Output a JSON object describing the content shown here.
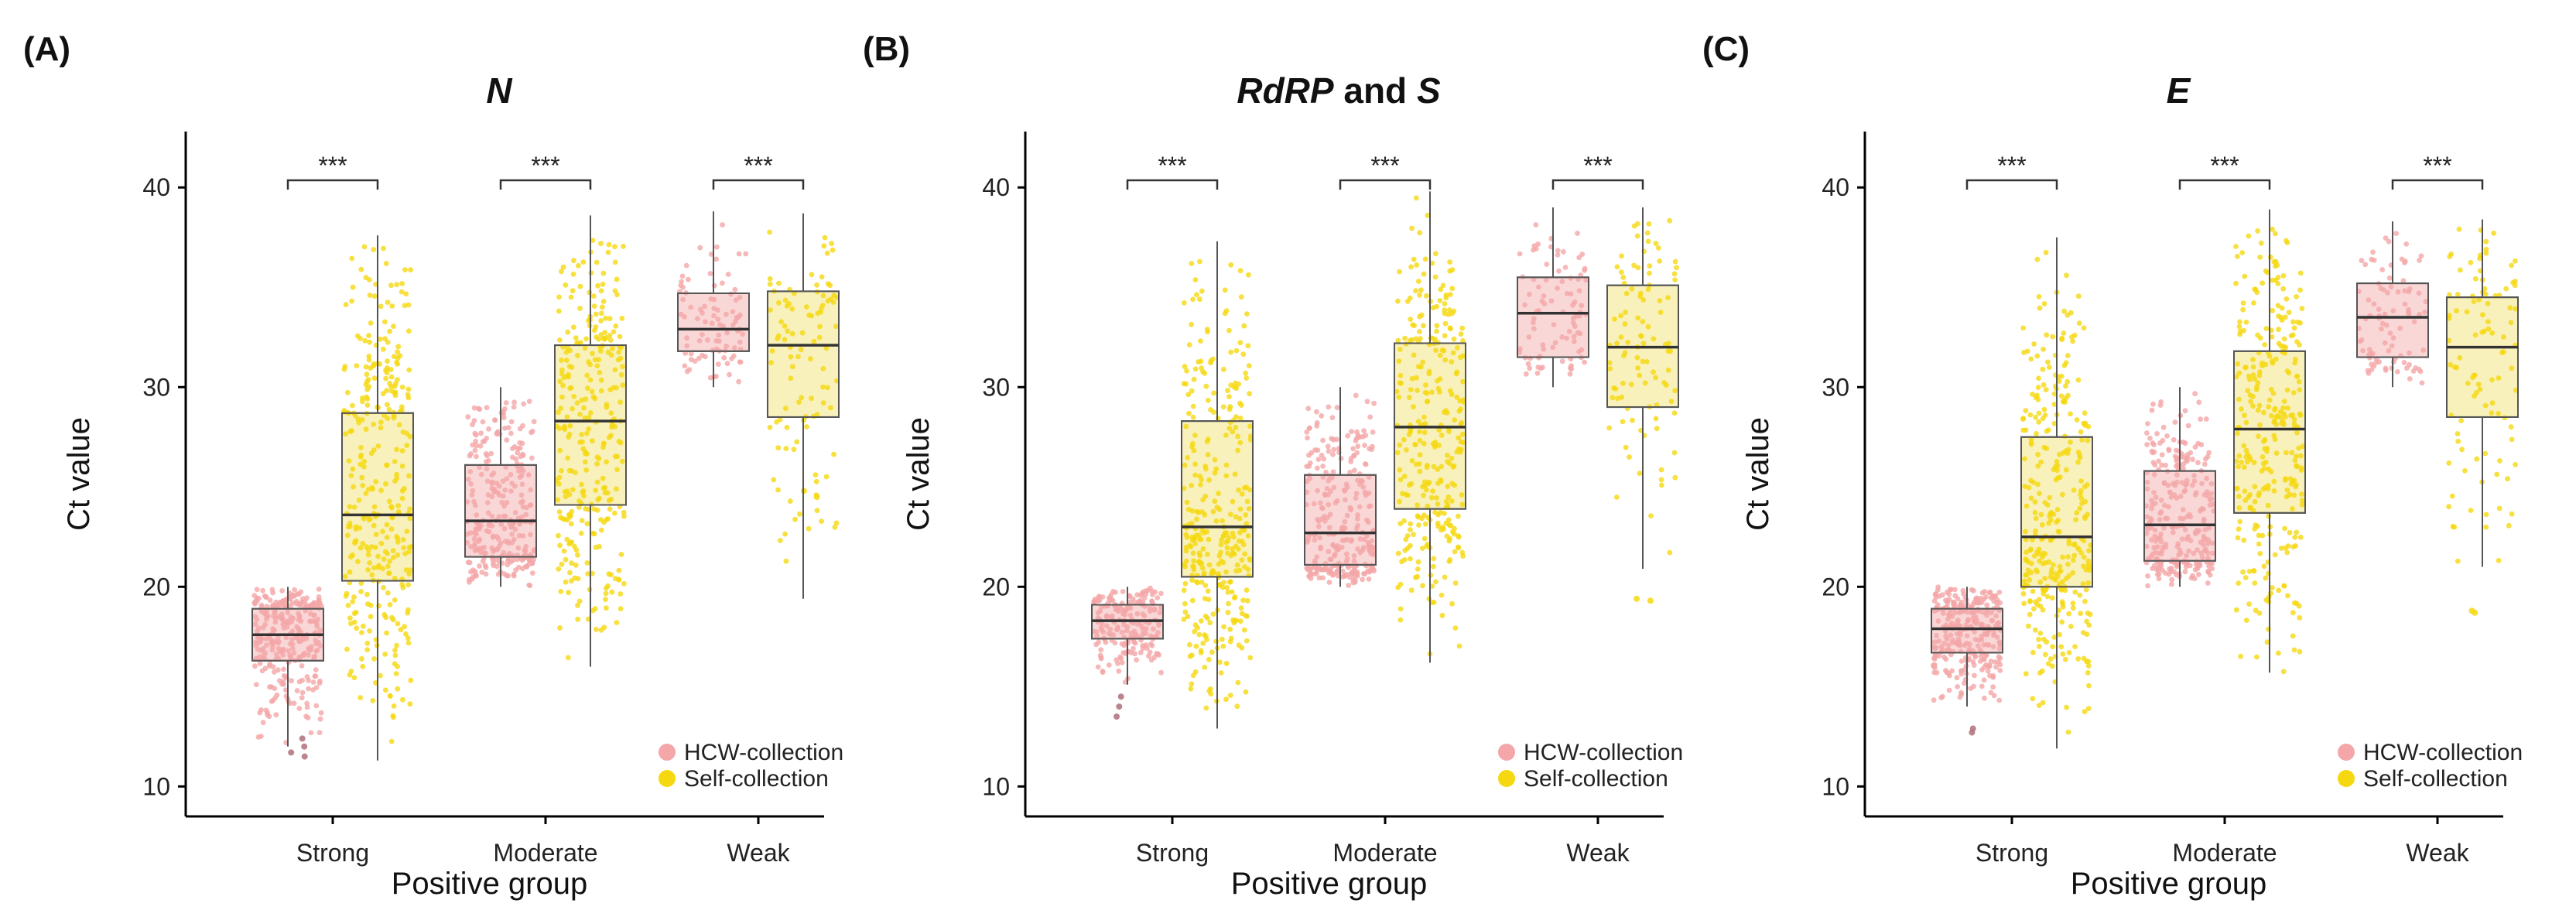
{
  "colors": {
    "hcw_point": "#f4a6a8",
    "hcw_box": "#f9d3d3",
    "self_point": "#f5d80f",
    "self_box": "#f8efb4",
    "axis": "#000000",
    "whisker": "#555555"
  },
  "chart_data": [
    {
      "type": "box",
      "panel_label": "(A)",
      "title": "N",
      "title_parts": [
        {
          "text": "N",
          "italic": true
        }
      ],
      "xlabel": "Positive group",
      "ylabel": "Ct value",
      "ylim": [
        8.5,
        42.8
      ],
      "yticks": [
        10,
        20,
        30,
        40
      ],
      "ytick_labels": [
        "10",
        "20",
        "30",
        "40"
      ],
      "categories": [
        "Strong",
        "Moderate",
        "Weak"
      ],
      "legend": [
        "HCW-collection",
        "Self-collection"
      ],
      "legend_position": "bottom-right",
      "significance": [
        "***",
        "***",
        "***"
      ],
      "series": [
        {
          "name": "HCW-collection",
          "color": "#f4a6a8",
          "boxes": [
            {
              "min": 12.0,
              "q1": 16.3,
              "median": 17.6,
              "q3": 18.9,
              "max": 20.0,
              "n": 300,
              "outliers": [
                11.5,
                12.0,
                11.7,
                12.4
              ]
            },
            {
              "min": 20.0,
              "q1": 21.5,
              "median": 23.3,
              "q3": 26.1,
              "max": 30.0,
              "n": 280,
              "outliers": []
            },
            {
              "min": 30.0,
              "q1": 31.8,
              "median": 32.9,
              "q3": 34.7,
              "max": 38.8,
              "n": 90,
              "outliers": []
            }
          ]
        },
        {
          "name": "Self-collection",
          "color": "#f5d80f",
          "boxes": [
            {
              "min": 11.3,
              "q1": 20.3,
              "median": 23.6,
              "q3": 28.7,
              "max": 37.6,
              "n": 330,
              "outliers": []
            },
            {
              "min": 16.0,
              "q1": 24.1,
              "median": 28.3,
              "q3": 32.1,
              "max": 38.6,
              "n": 300,
              "outliers": []
            },
            {
              "min": 19.4,
              "q1": 28.5,
              "median": 32.1,
              "q3": 34.8,
              "max": 38.7,
              "n": 100,
              "outliers": [
                24.5,
                24.8
              ]
            }
          ]
        }
      ]
    },
    {
      "type": "box",
      "panel_label": "(B)",
      "title": "RdRP and S",
      "title_parts": [
        {
          "text": "RdRP",
          "italic": true
        },
        {
          "text": " and ",
          "italic": false
        },
        {
          "text": "S",
          "italic": true
        }
      ],
      "xlabel": "Positive group",
      "ylabel": "Ct value",
      "ylim": [
        8.5,
        42.8
      ],
      "yticks": [
        10,
        20,
        30,
        40
      ],
      "ytick_labels": [
        "10",
        "20",
        "30",
        "40"
      ],
      "categories": [
        "Strong",
        "Moderate",
        "Weak"
      ],
      "legend": [
        "HCW-collection",
        "Self-collection"
      ],
      "legend_position": "bottom-right",
      "significance": [
        "***",
        "***",
        "***"
      ],
      "series": [
        {
          "name": "HCW-collection",
          "color": "#f4a6a8",
          "boxes": [
            {
              "min": 15.1,
              "q1": 17.4,
              "median": 18.3,
              "q3": 19.1,
              "max": 20.0,
              "n": 200,
              "outliers": [
                13.5,
                14.0,
                14.5
              ]
            },
            {
              "min": 20.0,
              "q1": 21.1,
              "median": 22.7,
              "q3": 25.6,
              "max": 30.0,
              "n": 280,
              "outliers": []
            },
            {
              "min": 30.0,
              "q1": 31.5,
              "median": 33.7,
              "q3": 35.5,
              "max": 39.0,
              "n": 90,
              "outliers": []
            }
          ]
        },
        {
          "name": "Self-collection",
          "color": "#f5d80f",
          "boxes": [
            {
              "min": 12.9,
              "q1": 20.5,
              "median": 23.0,
              "q3": 28.3,
              "max": 37.3,
              "n": 330,
              "outliers": []
            },
            {
              "min": 16.2,
              "q1": 23.9,
              "median": 28.0,
              "q3": 32.2,
              "max": 39.8,
              "n": 300,
              "outliers": []
            },
            {
              "min": 20.9,
              "q1": 29.0,
              "median": 32.0,
              "q3": 35.1,
              "max": 39.0,
              "n": 100,
              "outliers": [
                19.3,
                19.4
              ]
            }
          ]
        }
      ]
    },
    {
      "type": "box",
      "panel_label": "(C)",
      "title": "E",
      "title_parts": [
        {
          "text": "E",
          "italic": true
        }
      ],
      "xlabel": "Positive group",
      "ylabel": "Ct value",
      "ylim": [
        8.5,
        42.8
      ],
      "yticks": [
        10,
        20,
        30,
        40
      ],
      "ytick_labels": [
        "10",
        "20",
        "30",
        "40"
      ],
      "categories": [
        "Strong",
        "Moderate",
        "Weak"
      ],
      "legend": [
        "HCW-collection",
        "Self-collection"
      ],
      "legend_position": "bottom-right",
      "significance": [
        "***",
        "***",
        "***"
      ],
      "series": [
        {
          "name": "HCW-collection",
          "color": "#f4a6a8",
          "boxes": [
            {
              "min": 14.0,
              "q1": 16.7,
              "median": 17.9,
              "q3": 18.9,
              "max": 20.0,
              "n": 300,
              "outliers": [
                12.7,
                12.9
              ]
            },
            {
              "min": 20.0,
              "q1": 21.3,
              "median": 23.1,
              "q3": 25.8,
              "max": 30.0,
              "n": 280,
              "outliers": []
            },
            {
              "min": 30.0,
              "q1": 31.5,
              "median": 33.5,
              "q3": 35.2,
              "max": 38.3,
              "n": 90,
              "outliers": []
            }
          ]
        },
        {
          "name": "Self-collection",
          "color": "#f5d80f",
          "boxes": [
            {
              "min": 11.9,
              "q1": 20.0,
              "median": 22.5,
              "q3": 27.5,
              "max": 37.5,
              "n": 330,
              "outliers": []
            },
            {
              "min": 15.7,
              "q1": 23.7,
              "median": 27.9,
              "q3": 31.8,
              "max": 38.9,
              "n": 300,
              "outliers": []
            },
            {
              "min": 21.0,
              "q1": 28.5,
              "median": 32.0,
              "q3": 34.5,
              "max": 38.4,
              "n": 100,
              "outliers": [
                18.7,
                18.8
              ]
            }
          ]
        }
      ]
    }
  ]
}
